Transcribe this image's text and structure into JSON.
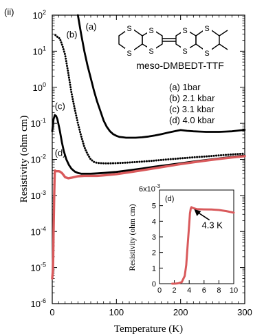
{
  "panel_label": "(ii)",
  "molecule": {
    "name": "meso-DMBEDT-TTF",
    "atom_label": "S"
  },
  "legend": [
    "(a) 1bar",
    "(b) 2.1 kbar",
    "(c) 3.1 kbar",
    "(d) 4.0 kbar"
  ],
  "colors": {
    "black": "#000000",
    "red": "#d9595b"
  },
  "chart_data": [
    {
      "type": "line",
      "xlabel": "Temperature (K)",
      "ylabel": "Resistivity (ohm cm)",
      "xlim": [
        0,
        300
      ],
      "ylim": [
        1e-06,
        100
      ],
      "yscale": "log",
      "x_ticks": [
        {
          "value": 0,
          "label": "0"
        },
        {
          "value": 100,
          "label": "100"
        },
        {
          "value": 200,
          "label": "200"
        },
        {
          "value": 300,
          "label": "300"
        }
      ],
      "y_ticks": [
        {
          "value": 1e-06,
          "mantissa": "10",
          "exp": "-6"
        },
        {
          "value": 1e-05,
          "mantissa": "10",
          "exp": "-5"
        },
        {
          "value": 0.0001,
          "mantissa": "10",
          "exp": "-4"
        },
        {
          "value": 0.001,
          "mantissa": "10",
          "exp": "-3"
        },
        {
          "value": 0.01,
          "mantissa": "10",
          "exp": "-2"
        },
        {
          "value": 0.1,
          "mantissa": "10",
          "exp": "-1"
        },
        {
          "value": 1,
          "mantissa": "10",
          "exp": "0"
        },
        {
          "value": 10,
          "mantissa": "10",
          "exp": "1"
        },
        {
          "value": 100,
          "mantissa": "10",
          "exp": "2"
        }
      ],
      "series": [
        {
          "name": "(a) 1bar",
          "label": "(a)",
          "color": "#000000",
          "style": "solid",
          "label_at": [
            52,
            40
          ],
          "x": [
            40,
            45,
            50,
            55,
            60,
            65,
            70,
            75,
            80,
            85,
            90,
            95,
            100,
            105,
            110,
            115,
            120,
            125,
            130,
            140,
            150,
            160,
            170,
            180,
            190,
            200,
            210,
            220,
            230,
            240,
            250,
            260,
            270,
            280,
            290,
            300
          ],
          "y": [
            100,
            30,
            10,
            4,
            1.8,
            0.8,
            0.4,
            0.22,
            0.12,
            0.08,
            0.06,
            0.05,
            0.045,
            0.042,
            0.041,
            0.04,
            0.04,
            0.04,
            0.04,
            0.041,
            0.043,
            0.046,
            0.05,
            0.055,
            0.06,
            0.065,
            0.062,
            0.06,
            0.059,
            0.058,
            0.058,
            0.058,
            0.059,
            0.06,
            0.063,
            0.066
          ]
        },
        {
          "name": "(b) 2.1 kbar",
          "label": "(b)",
          "color": "#000000",
          "style": "dotted",
          "label_at": [
            22,
            24
          ],
          "x": [
            5,
            8,
            12,
            16,
            20,
            25,
            30,
            35,
            40,
            45,
            50,
            55,
            60,
            65,
            70,
            80,
            90,
            100,
            120,
            140,
            160,
            180,
            200,
            220,
            240,
            260,
            280,
            300
          ],
          "y": [
            28,
            25,
            22,
            14,
            8,
            2.5,
            0.7,
            0.25,
            0.1,
            0.045,
            0.022,
            0.014,
            0.01,
            0.0085,
            0.008,
            0.0078,
            0.0078,
            0.0079,
            0.0082,
            0.0087,
            0.0093,
            0.01,
            0.0107,
            0.0114,
            0.0121,
            0.0129,
            0.0137,
            0.0145
          ]
        },
        {
          "name": "(c) 3.1 kbar",
          "label": "(c)",
          "color": "#000000",
          "style": "solid",
          "label_at": [
            4,
            0.25
          ],
          "x": [
            0,
            2,
            4,
            6,
            8,
            10,
            12,
            15,
            18,
            22,
            26,
            30,
            35,
            40,
            45,
            50,
            60,
            70,
            80,
            100,
            120,
            140,
            160,
            180,
            200,
            220,
            240,
            260,
            280,
            300
          ],
          "y": [
            0.06,
            0.13,
            0.17,
            0.16,
            0.13,
            0.09,
            0.06,
            0.03,
            0.017,
            0.01,
            0.007,
            0.0055,
            0.0046,
            0.0042,
            0.004,
            0.004,
            0.004,
            0.0041,
            0.0042,
            0.0045,
            0.005,
            0.0056,
            0.0063,
            0.007,
            0.0078,
            0.0087,
            0.0096,
            0.0106,
            0.0117,
            0.0128
          ]
        },
        {
          "name": "(d) 4.0 kbar",
          "label": "(d)",
          "color": "#d9595b",
          "style": "solid",
          "label_at": [
            4,
            0.0125
          ],
          "x": [
            0,
            1,
            1.5,
            2,
            3,
            3.5,
            4,
            4.3,
            5,
            6,
            8,
            10,
            12,
            15,
            18,
            20,
            25,
            30,
            40,
            50,
            60,
            70,
            80,
            100,
            120,
            140,
            160,
            180,
            200,
            220,
            240,
            260,
            280,
            300
          ],
          "y": [
            5e-06,
            8e-06,
            2e-05,
            0.0001,
            0.0009,
            0.0025,
            0.0045,
            0.0049,
            0.0048,
            0.0047,
            0.0047,
            0.0047,
            0.0046,
            0.0042,
            0.0036,
            0.0032,
            0.003,
            0.0031,
            0.0034,
            0.0035,
            0.0035,
            0.0035,
            0.0036,
            0.0039,
            0.0044,
            0.005,
            0.0057,
            0.0065,
            0.0074,
            0.0083,
            0.0093,
            0.0103,
            0.0113,
            0.0123
          ]
        }
      ]
    },
    {
      "type": "line",
      "xlabel": "",
      "ylabel": "Resistivity (ohm cm)",
      "xlim": [
        0,
        10
      ],
      "ylim": [
        0,
        0.006
      ],
      "y_multiplier_label": "6x10",
      "y_multiplier_exp": "-3",
      "x_ticks": [
        {
          "value": 0,
          "label": "0"
        },
        {
          "value": 2,
          "label": "2"
        },
        {
          "value": 4,
          "label": "4"
        },
        {
          "value": 6,
          "label": "6"
        },
        {
          "value": 8,
          "label": "8"
        },
        {
          "value": 10,
          "label": "10"
        }
      ],
      "y_ticks": [
        {
          "value": 0,
          "label": "0"
        },
        {
          "value": 0.001,
          "label": "1"
        },
        {
          "value": 0.002,
          "label": "2"
        },
        {
          "value": 0.003,
          "label": "3"
        },
        {
          "value": 0.004,
          "label": "4"
        },
        {
          "value": 0.005,
          "label": "5"
        }
      ],
      "annotation": {
        "text": "4.3 K",
        "target": [
          4.3,
          0.0049
        ],
        "text_at": [
          7.1,
          0.00355
        ]
      },
      "series": [
        {
          "name": "(d)",
          "label": "(d)",
          "color": "#d9595b",
          "x": [
            1.7,
            2,
            2.5,
            3,
            3.4,
            3.6,
            3.8,
            4.0,
            4.1,
            4.2,
            4.3,
            4.5,
            5,
            6,
            7,
            8,
            9,
            10
          ],
          "y": [
            0,
            0,
            2e-05,
            0.0001,
            0.0005,
            0.0012,
            0.0025,
            0.0038,
            0.0045,
            0.0048,
            0.0049,
            0.00485,
            0.00478,
            0.00476,
            0.00475,
            0.00472,
            0.00465,
            0.00455
          ]
        }
      ]
    }
  ]
}
